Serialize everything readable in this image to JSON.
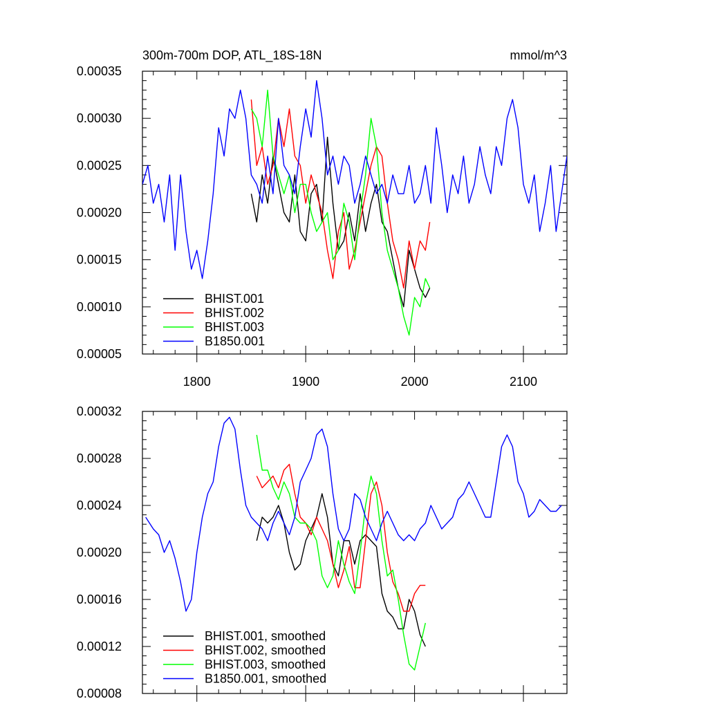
{
  "chart_data": [
    {
      "type": "line",
      "title": "300m-700m DOP, ATL_18S-18N",
      "units": "mmol/m^3",
      "xlim": [
        1750,
        2140
      ],
      "ylim": [
        5e-05,
        0.00035
      ],
      "xticks": [
        1800,
        1900,
        2000,
        2100
      ],
      "xtick_labels": [
        "1800",
        "1900",
        "2000",
        "2100"
      ],
      "show_xtick_labels": true,
      "yticks": [
        5e-05,
        0.0001,
        0.00015,
        0.0002,
        0.00025,
        0.0003,
        0.00035
      ],
      "ytick_labels": [
        "0.00005",
        "0.00010",
        "0.00015",
        "0.00020",
        "0.00025",
        "0.00030",
        "0.00035"
      ],
      "legend_position": "bottom-left",
      "series": [
        {
          "name": "BHIST.001",
          "color": "#000000",
          "x": [
            1850,
            1855,
            1860,
            1865,
            1870,
            1875,
            1880,
            1885,
            1890,
            1895,
            1900,
            1905,
            1910,
            1915,
            1920,
            1925,
            1930,
            1935,
            1940,
            1945,
            1950,
            1955,
            1960,
            1965,
            1970,
            1975,
            1980,
            1985,
            1990,
            1995,
            2000,
            2005,
            2010,
            2014
          ],
          "y": [
            0.00022,
            0.00019,
            0.00024,
            0.00021,
            0.00026,
            0.00023,
            0.0002,
            0.00019,
            0.00024,
            0.00018,
            0.00017,
            0.00022,
            0.00023,
            0.00019,
            0.00028,
            0.00021,
            0.00016,
            0.00017,
            0.0002,
            0.00017,
            0.00022,
            0.00018,
            0.00021,
            0.00023,
            0.00019,
            0.00018,
            0.00015,
            0.00012,
            0.0001,
            0.00016,
            0.00014,
            0.00012,
            0.00011,
            0.00012
          ]
        },
        {
          "name": "BHIST.002",
          "color": "#ff0000",
          "x": [
            1850,
            1855,
            1860,
            1865,
            1870,
            1875,
            1880,
            1885,
            1890,
            1895,
            1900,
            1905,
            1910,
            1915,
            1920,
            1925,
            1930,
            1935,
            1940,
            1945,
            1950,
            1955,
            1960,
            1965,
            1970,
            1975,
            1980,
            1985,
            1990,
            1995,
            2000,
            2005,
            2010,
            2014
          ],
          "y": [
            0.00032,
            0.00025,
            0.00027,
            0.00023,
            0.00025,
            0.0003,
            0.00027,
            0.00031,
            0.00026,
            0.00025,
            0.00021,
            0.00024,
            0.00022,
            0.0002,
            0.00016,
            0.00013,
            0.00018,
            0.0002,
            0.00014,
            0.00016,
            0.00019,
            0.00022,
            0.00025,
            0.00027,
            0.00026,
            0.00021,
            0.00017,
            0.00015,
            0.00012,
            0.00017,
            0.00014,
            0.00017,
            0.00016,
            0.00019
          ]
        },
        {
          "name": "BHIST.003",
          "color": "#00ff00",
          "x": [
            1850,
            1855,
            1860,
            1865,
            1870,
            1875,
            1880,
            1885,
            1890,
            1895,
            1900,
            1905,
            1910,
            1915,
            1920,
            1925,
            1930,
            1935,
            1940,
            1945,
            1950,
            1955,
            1960,
            1965,
            1970,
            1975,
            1980,
            1985,
            1990,
            1995,
            2000,
            2005,
            2010,
            2014
          ],
          "y": [
            0.00031,
            0.0003,
            0.00027,
            0.00033,
            0.00026,
            0.00024,
            0.00022,
            0.00024,
            0.0002,
            0.00023,
            0.00023,
            0.0002,
            0.00018,
            0.00019,
            0.0002,
            0.00015,
            0.00016,
            0.00021,
            0.00019,
            0.00015,
            0.0002,
            0.00024,
            0.0003,
            0.00027,
            0.0002,
            0.00016,
            0.00014,
            0.00012,
            9e-05,
            7e-05,
            0.00011,
            0.0001,
            0.00013,
            0.00012
          ]
        },
        {
          "name": "B1850.001",
          "color": "#0000ff",
          "x": [
            1750,
            1755,
            1760,
            1765,
            1770,
            1775,
            1780,
            1785,
            1790,
            1795,
            1800,
            1805,
            1810,
            1815,
            1820,
            1825,
            1830,
            1835,
            1840,
            1845,
            1850,
            1855,
            1860,
            1865,
            1870,
            1875,
            1880,
            1885,
            1890,
            1895,
            1900,
            1905,
            1910,
            1915,
            1920,
            1925,
            1930,
            1935,
            1940,
            1945,
            1950,
            1955,
            1960,
            1965,
            1970,
            1975,
            1980,
            1985,
            1990,
            1995,
            2000,
            2005,
            2010,
            2015,
            2020,
            2025,
            2030,
            2035,
            2040,
            2045,
            2050,
            2055,
            2060,
            2065,
            2070,
            2075,
            2080,
            2085,
            2090,
            2095,
            2100,
            2105,
            2110,
            2115,
            2120,
            2125,
            2130,
            2135,
            2140
          ],
          "y": [
            0.00023,
            0.00025,
            0.00021,
            0.00023,
            0.00019,
            0.00024,
            0.00016,
            0.00024,
            0.00018,
            0.00014,
            0.00016,
            0.00013,
            0.00017,
            0.00022,
            0.00029,
            0.00026,
            0.00031,
            0.0003,
            0.00033,
            0.0003,
            0.00024,
            0.00023,
            0.00021,
            0.00026,
            0.00022,
            0.0003,
            0.00025,
            0.00024,
            0.00022,
            0.00027,
            0.00031,
            0.00028,
            0.00034,
            0.0003,
            0.00024,
            0.00026,
            0.00023,
            0.00026,
            0.00025,
            0.00021,
            0.00023,
            0.00026,
            0.00024,
            0.00022,
            0.00023,
            0.00021,
            0.00024,
            0.00022,
            0.00022,
            0.00025,
            0.00021,
            0.00022,
            0.00025,
            0.00021,
            0.00029,
            0.00025,
            0.0002,
            0.00024,
            0.00022,
            0.00026,
            0.00021,
            0.00023,
            0.00027,
            0.00024,
            0.00022,
            0.00027,
            0.00025,
            0.0003,
            0.00032,
            0.00029,
            0.00023,
            0.00021,
            0.00024,
            0.00018,
            0.00021,
            0.00025,
            0.00018,
            0.00022,
            0.00026
          ]
        }
      ]
    },
    {
      "type": "line",
      "title": "",
      "xlim": [
        1750,
        2140
      ],
      "ylim": [
        8e-05,
        0.00032
      ],
      "xticks": [
        1800,
        1900,
        2000,
        2100
      ],
      "xtick_labels": [],
      "show_xtick_labels": false,
      "yticks": [
        8e-05,
        0.00012,
        0.00016,
        0.0002,
        0.00024,
        0.00028,
        0.00032
      ],
      "ytick_labels": [
        "0.00008",
        "0.00012",
        "0.00016",
        "0.00020",
        "0.00024",
        "0.00028",
        "0.00032"
      ],
      "legend_position": "bottom-left",
      "series": [
        {
          "name": "BHIST.001, smoothed",
          "color": "#000000",
          "x": [
            1855,
            1860,
            1865,
            1870,
            1875,
            1880,
            1885,
            1890,
            1895,
            1900,
            1905,
            1910,
            1915,
            1920,
            1925,
            1930,
            1935,
            1940,
            1945,
            1950,
            1955,
            1960,
            1965,
            1970,
            1975,
            1980,
            1985,
            1990,
            1995,
            2000,
            2005,
            2010
          ],
          "y": [
            0.00021,
            0.00023,
            0.000225,
            0.00023,
            0.00024,
            0.000225,
            0.0002,
            0.000185,
            0.00019,
            0.00021,
            0.00022,
            0.00023,
            0.00025,
            0.00023,
            0.00019,
            0.00018,
            0.00021,
            0.00021,
            0.00019,
            0.00021,
            0.000215,
            0.00021,
            0.000205,
            0.000165,
            0.00015,
            0.000145,
            0.000135,
            0.000135,
            0.00016,
            0.00015,
            0.00013,
            0.00012
          ]
        },
        {
          "name": "BHIST.002, smoothed",
          "color": "#ff0000",
          "x": [
            1855,
            1860,
            1865,
            1870,
            1875,
            1880,
            1885,
            1890,
            1895,
            1900,
            1905,
            1910,
            1915,
            1920,
            1925,
            1930,
            1935,
            1940,
            1945,
            1950,
            1955,
            1960,
            1965,
            1970,
            1975,
            1980,
            1985,
            1990,
            1995,
            2000,
            2005,
            2010
          ],
          "y": [
            0.000265,
            0.000255,
            0.00026,
            0.000265,
            0.000255,
            0.00027,
            0.000275,
            0.00025,
            0.00023,
            0.000225,
            0.000215,
            0.00023,
            0.00022,
            0.00021,
            0.00019,
            0.00017,
            0.000185,
            0.000205,
            0.00017,
            0.00017,
            0.00021,
            0.00025,
            0.00026,
            0.00024,
            0.0002,
            0.000175,
            0.000165,
            0.00015,
            0.00015,
            0.000165,
            0.000172,
            0.000172
          ]
        },
        {
          "name": "BHIST.003, smoothed",
          "color": "#00ff00",
          "x": [
            1855,
            1860,
            1865,
            1870,
            1875,
            1880,
            1885,
            1890,
            1895,
            1900,
            1905,
            1910,
            1915,
            1920,
            1925,
            1930,
            1935,
            1940,
            1945,
            1950,
            1955,
            1960,
            1965,
            1970,
            1975,
            1980,
            1985,
            1990,
            1995,
            2000,
            2005,
            2010
          ],
          "y": [
            0.0003,
            0.00027,
            0.00027,
            0.000255,
            0.000245,
            0.00026,
            0.00025,
            0.00023,
            0.000225,
            0.000225,
            0.00022,
            0.00021,
            0.00018,
            0.00017,
            0.00018,
            0.00021,
            0.00019,
            0.000175,
            0.000165,
            0.0002,
            0.00024,
            0.000265,
            0.00025,
            0.00021,
            0.00018,
            0.000185,
            0.00016,
            0.00013,
            0.000105,
            0.0001,
            0.00012,
            0.00014
          ]
        },
        {
          "name": "B1850.001, smoothed",
          "color": "#0000ff",
          "x": [
            1753,
            1760,
            1765,
            1770,
            1775,
            1780,
            1785,
            1790,
            1795,
            1800,
            1805,
            1810,
            1815,
            1820,
            1825,
            1830,
            1835,
            1840,
            1845,
            1850,
            1855,
            1860,
            1865,
            1870,
            1875,
            1880,
            1885,
            1890,
            1895,
            1900,
            1905,
            1910,
            1915,
            1920,
            1925,
            1930,
            1935,
            1940,
            1945,
            1950,
            1955,
            1960,
            1965,
            1970,
            1975,
            1980,
            1985,
            1990,
            1995,
            2000,
            2005,
            2010,
            2015,
            2020,
            2025,
            2030,
            2035,
            2040,
            2045,
            2050,
            2055,
            2060,
            2065,
            2070,
            2075,
            2080,
            2085,
            2090,
            2095,
            2100,
            2105,
            2110,
            2115,
            2120,
            2125,
            2130,
            2135
          ],
          "y": [
            0.00023,
            0.00022,
            0.000215,
            0.0002,
            0.00021,
            0.000195,
            0.000175,
            0.00015,
            0.00016,
            0.0002,
            0.00023,
            0.00025,
            0.00026,
            0.00029,
            0.00031,
            0.000315,
            0.000305,
            0.00027,
            0.00024,
            0.00023,
            0.000225,
            0.00022,
            0.00021,
            0.000225,
            0.000235,
            0.000225,
            0.000215,
            0.00023,
            0.00026,
            0.00027,
            0.00028,
            0.0003,
            0.000305,
            0.00029,
            0.00025,
            0.00022,
            0.00021,
            0.00022,
            0.00025,
            0.000245,
            0.00023,
            0.00022,
            0.00021,
            0.000225,
            0.000235,
            0.000225,
            0.000215,
            0.00021,
            0.000215,
            0.00021,
            0.00022,
            0.000225,
            0.00024,
            0.00023,
            0.00022,
            0.000225,
            0.00023,
            0.000245,
            0.00025,
            0.00026,
            0.00025,
            0.00024,
            0.00023,
            0.00023,
            0.00026,
            0.00029,
            0.0003,
            0.00029,
            0.00026,
            0.00025,
            0.00023,
            0.000235,
            0.000245,
            0.00024,
            0.000235,
            0.000235,
            0.00024
          ]
        }
      ]
    }
  ]
}
